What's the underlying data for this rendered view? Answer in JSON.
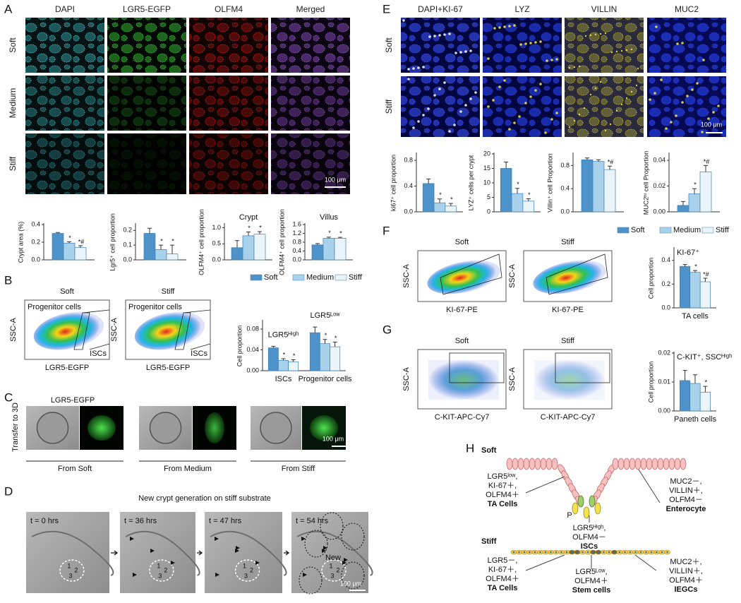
{
  "panel_labels": [
    "A",
    "B",
    "C",
    "D",
    "E",
    "F",
    "G",
    "H"
  ],
  "legend": [
    {
      "name": "Soft",
      "color": "#4d93c9"
    },
    {
      "name": "Medium",
      "color": "#a8d2ec"
    },
    {
      "name": "Stiff",
      "color": "#eaf4fb"
    }
  ],
  "panel_a": {
    "columns": [
      "DAPI",
      "LGR5-EGFP",
      "OLFM4",
      "Merged"
    ],
    "rows": [
      "Soft",
      "Medium",
      "Stiff"
    ],
    "scale_bar": "100 μm"
  },
  "panel_b": {
    "plots": [
      "Soft",
      "Stiff"
    ],
    "y_label": "SSC-A",
    "x_label": "LGR5-EGFP",
    "gates": [
      "Progenitor cells",
      "ISCs"
    ]
  },
  "panel_c": {
    "side_label": "Transfer to 3D",
    "channel": "LGR5-EGFP",
    "sources": [
      "From Soft",
      "From Medium",
      "From Stiff"
    ],
    "scale_bar": "100 μm"
  },
  "panel_d": {
    "title": "New crypt generation on stiff substrate",
    "times": [
      "t = 0 hrs",
      "t = 36 hrs",
      "t = 47 hrs",
      "t = 54 hrs"
    ],
    "new_label": "New",
    "crypt_numbers": [
      "1",
      "2",
      "3"
    ],
    "scale_bar": "100 μm"
  },
  "panel_e": {
    "columns": [
      "DAPI+KI-67",
      "LYZ",
      "VILLIN",
      "MUC2"
    ],
    "rows": [
      "Soft",
      "Stiff"
    ],
    "scale_bar": "100 μm"
  },
  "panel_f": {
    "plots": [
      "Soft",
      "Stiff"
    ],
    "y_label": "SSC-A",
    "x_label": "KI-67-PE"
  },
  "panel_g": {
    "plots": [
      "Soft",
      "Stiff"
    ],
    "y_label": "SSC-A",
    "x_label": "C-KIT-APC-Cy7"
  },
  "panel_h": {
    "soft": {
      "title": "Soft",
      "ta": [
        "LGR5ˡᵒʷ,",
        "KI-67＋,",
        "OLFM4＋",
        "TA Cells"
      ],
      "paneth": "P",
      "isc": [
        "LGR5ᴴⁱᵍʰ,",
        "OLFM4－",
        "ISCs"
      ],
      "entero": [
        "MUC2－,",
        "VILLIN＋,",
        "OLFM4－",
        "Enterocyte"
      ]
    },
    "stiff": {
      "title": "Stiff",
      "ta": [
        "LGR5－,",
        "KI-67＋,",
        "OLFM4＋",
        "TA Cells"
      ],
      "stem": [
        "LGR5ᴸᵒʷ,",
        "OLFM4＋",
        "Stem cells"
      ],
      "iegc": [
        "MUC2＋,",
        "VILLIN＋,",
        "OLFM4＋",
        "IEGCs"
      ]
    }
  },
  "chart_data": [
    {
      "type": "bar",
      "y_label": "Crypt area (%)",
      "categories": [
        null
      ],
      "ylim": [
        0,
        0.4
      ],
      "yticks": [
        {
          "value": 0,
          "label": "0.0"
        },
        {
          "value": 0.2,
          "label": "0.2"
        },
        {
          "value": 0.4,
          "label": "0.4"
        }
      ],
      "series": [
        {
          "values": [
            0.3
          ],
          "errors": [
            0.01
          ],
          "significance": [
            null
          ]
        },
        {
          "values": [
            0.19
          ],
          "errors": [
            0.015
          ],
          "significance": [
            "*"
          ]
        },
        {
          "values": [
            0.14
          ],
          "errors": [
            0.02
          ],
          "significance": [
            "*#"
          ]
        }
      ]
    },
    {
      "type": "bar",
      "y_label": "Lgr5⁺ cell proportion",
      "categories": [
        null
      ],
      "ylim": [
        0,
        0.24
      ],
      "yticks": [
        {
          "value": 0,
          "label": "0.0"
        },
        {
          "value": 0.1,
          "label": "0.1"
        },
        {
          "value": 0.2,
          "label": "0.2"
        }
      ],
      "series": [
        {
          "values": [
            0.18
          ],
          "errors": [
            0.035
          ],
          "significance": [
            null
          ]
        },
        {
          "values": [
            0.07
          ],
          "errors": [
            0.03
          ],
          "significance": [
            "*"
          ]
        },
        {
          "values": [
            0.04
          ],
          "errors": [
            0.06
          ],
          "significance": [
            "*"
          ]
        }
      ]
    },
    {
      "type": "bar",
      "title": "Crypt",
      "y_label": "OLFM4⁺ cell proportion",
      "categories": [
        null
      ],
      "ylim": [
        0,
        1.1
      ],
      "yticks": [
        {
          "value": 0,
          "label": "0.0"
        },
        {
          "value": 0.5,
          "label": "0.5"
        },
        {
          "value": 1,
          "label": "1.0"
        }
      ],
      "series": [
        {
          "values": [
            0.38
          ],
          "errors": [
            0.22
          ],
          "significance": [
            null
          ]
        },
        {
          "values": [
            0.75
          ],
          "errors": [
            0.12
          ],
          "significance": [
            "*"
          ]
        },
        {
          "values": [
            0.8
          ],
          "errors": [
            0.08
          ],
          "significance": [
            "*"
          ]
        }
      ]
    },
    {
      "type": "bar",
      "title": "Villus",
      "y_label": "OLFM4⁺ cell proportion",
      "categories": [
        null
      ],
      "ylim": [
        0,
        1.6
      ],
      "yticks": [
        {
          "value": 0,
          "label": "0.0"
        },
        {
          "value": 0.4,
          "label": "0.4"
        },
        {
          "value": 0.8,
          "label": "0.8"
        },
        {
          "value": 1.2,
          "label": "1.2"
        },
        {
          "value": 1.6,
          "label": "1.6"
        }
      ],
      "series": [
        {
          "values": [
            0.68
          ],
          "errors": [
            0.06
          ],
          "significance": [
            null
          ]
        },
        {
          "values": [
            0.98
          ],
          "errors": [
            0.05
          ],
          "significance": [
            "*"
          ]
        },
        {
          "values": [
            0.98
          ],
          "errors": [
            0.04
          ],
          "significance": [
            "*"
          ]
        }
      ]
    },
    {
      "type": "bar",
      "y_label": "Cell proportion",
      "categories": [
        "ISCs",
        "Progenitor cells"
      ],
      "group_titles": [
        "LGR5ᴴⁱᵍʰ",
        "LGR5ᴸᵒʷ"
      ],
      "ylim": [
        0,
        0.095
      ],
      "yticks": [
        {
          "value": 0,
          "label": "0.00"
        },
        {
          "value": 0.04,
          "label": "0.04"
        },
        {
          "value": 0.08,
          "label": "0.08"
        }
      ],
      "series": [
        {
          "values": [
            0.044,
            0.073
          ],
          "errors": [
            0.003,
            0.011
          ],
          "significance": [
            null,
            null
          ]
        },
        {
          "values": [
            0.02,
            0.052
          ],
          "errors": [
            0.003,
            0.008
          ],
          "significance": [
            "*",
            "*"
          ]
        },
        {
          "values": [
            0.017,
            0.046
          ],
          "errors": [
            0.004,
            0.009
          ],
          "significance": [
            "*",
            "*"
          ]
        }
      ]
    },
    {
      "type": "bar",
      "y_label": "ki67⁺ cell proportion",
      "categories": [
        null
      ],
      "ylim": [
        0,
        0.9
      ],
      "yticks": [
        {
          "value": 0,
          "label": "0.0"
        },
        {
          "value": 0.4,
          "label": "0.4"
        },
        {
          "value": 0.8,
          "label": "0.8"
        }
      ],
      "series": [
        {
          "values": [
            0.44
          ],
          "errors": [
            0.07
          ],
          "significance": [
            null
          ]
        },
        {
          "values": [
            0.14
          ],
          "errors": [
            0.06
          ],
          "significance": [
            "*"
          ]
        },
        {
          "values": [
            0.09
          ],
          "errors": [
            0.04
          ],
          "significance": [
            "*"
          ]
        }
      ]
    },
    {
      "type": "bar",
      "y_label": "LYZ⁺ cells per crypt",
      "categories": [
        null
      ],
      "ylim": [
        0,
        20
      ],
      "yticks": [
        0,
        5,
        10,
        15,
        20
      ],
      "series": [
        {
          "values": [
            15
          ],
          "errors": [
            2.2
          ],
          "significance": [
            null
          ]
        },
        {
          "values": [
            6.3
          ],
          "errors": [
            1.8
          ],
          "significance": [
            "*"
          ]
        },
        {
          "values": [
            3.7
          ],
          "errors": [
            0.8
          ],
          "significance": [
            "*"
          ]
        }
      ]
    },
    {
      "type": "bar",
      "y_label": "Villin⁺ cell Proportion",
      "categories": [
        null
      ],
      "ylim": [
        0,
        1.0
      ],
      "yticks": [
        {
          "value": 0,
          "label": "0.0"
        },
        {
          "value": 0.4,
          "label": "0.4"
        },
        {
          "value": 0.8,
          "label": "0.8"
        }
      ],
      "series": [
        {
          "values": [
            0.9
          ],
          "errors": [
            0.03
          ],
          "significance": [
            null
          ]
        },
        {
          "values": [
            0.87
          ],
          "errors": [
            0.03
          ],
          "significance": [
            null
          ]
        },
        {
          "values": [
            0.73
          ],
          "errors": [
            0.06
          ],
          "significance": [
            "*#"
          ]
        }
      ]
    },
    {
      "type": "bar",
      "y_label": "MUC2ʰⁱ cell Proportion",
      "categories": [
        null
      ],
      "ylim": [
        0,
        0.045
      ],
      "yticks": [
        {
          "value": 0,
          "label": "0.00"
        },
        {
          "value": 0.02,
          "label": "0.02"
        },
        {
          "value": 0.04,
          "label": "0.04"
        }
      ],
      "series": [
        {
          "values": [
            0.005
          ],
          "errors": [
            0.003
          ],
          "significance": [
            null
          ]
        },
        {
          "values": [
            0.014
          ],
          "errors": [
            0.004
          ],
          "significance": [
            "*"
          ]
        },
        {
          "values": [
            0.031
          ],
          "errors": [
            0.005
          ],
          "significance": [
            "*#"
          ]
        }
      ]
    },
    {
      "type": "bar",
      "title": "KI-67⁺",
      "y_label": "Cell proportion",
      "categories": [
        "TA cells"
      ],
      "ylim": [
        0,
        0.5
      ],
      "yticks": [
        {
          "value": 0,
          "label": "0.0"
        },
        {
          "value": 0.2,
          "label": "0.2"
        },
        {
          "value": 0.4,
          "label": "0.4"
        }
      ],
      "series": [
        {
          "values": [
            0.35
          ],
          "errors": [
            0.015
          ],
          "significance": [
            null
          ]
        },
        {
          "values": [
            0.3
          ],
          "errors": [
            0.015
          ],
          "significance": [
            "*"
          ]
        },
        {
          "values": [
            0.22
          ],
          "errors": [
            0.03
          ],
          "significance": [
            "*#"
          ]
        }
      ]
    },
    {
      "type": "bar",
      "title": "C-KIT⁺, SSCᴴⁱᵍʰ",
      "y_label": "Cell proportion",
      "categories": [
        "Paneth cells"
      ],
      "ylim": [
        0,
        0.02
      ],
      "yticks": [
        {
          "value": 0,
          "label": "0.00"
        },
        {
          "value": 0.01,
          "label": "0.01"
        },
        {
          "value": 0.02,
          "label": "0.02"
        }
      ],
      "series": [
        {
          "values": [
            0.0105
          ],
          "errors": [
            0.0035
          ],
          "significance": [
            null
          ]
        },
        {
          "values": [
            0.0095
          ],
          "errors": [
            0.003
          ],
          "significance": [
            null
          ]
        },
        {
          "values": [
            0.0065
          ],
          "errors": [
            0.002
          ],
          "significance": [
            "*"
          ]
        }
      ]
    }
  ]
}
